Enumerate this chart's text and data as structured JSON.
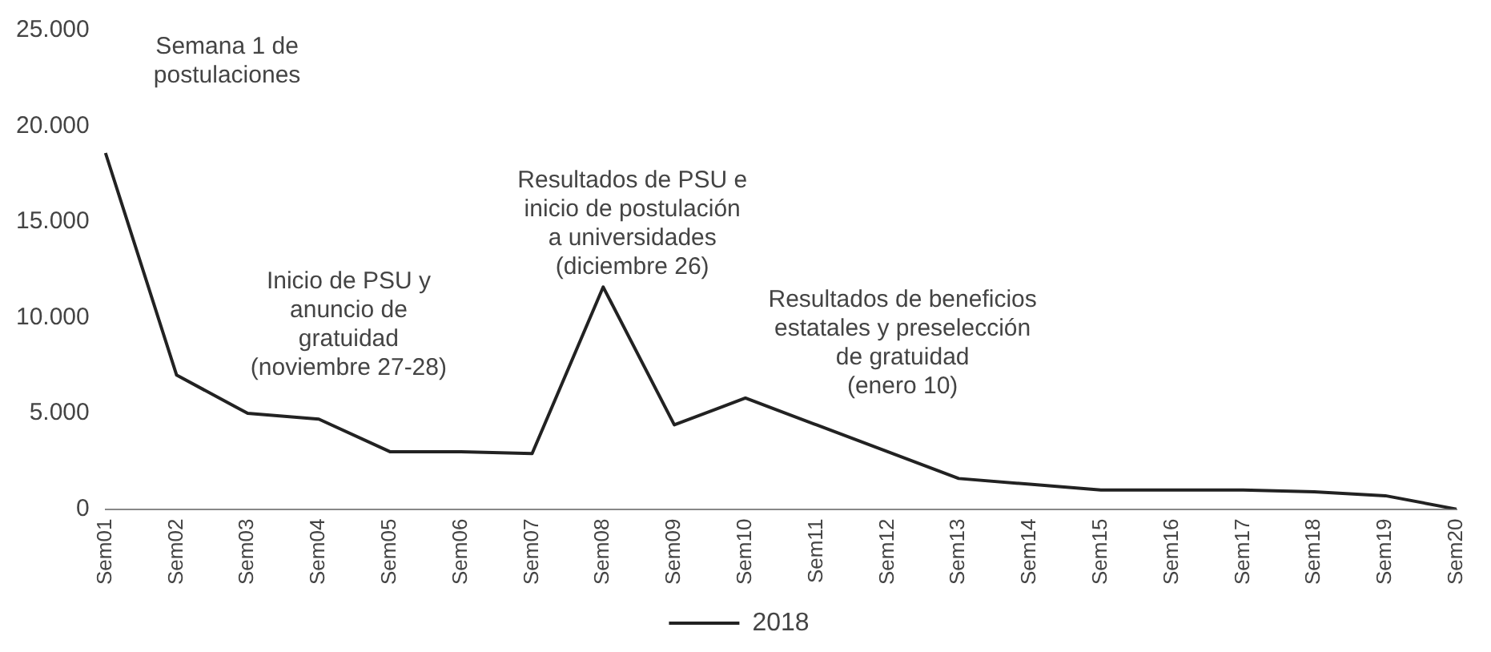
{
  "chart_data": {
    "type": "line",
    "categories": [
      "Sem01",
      "Sem02",
      "Sem03",
      "Sem04",
      "Sem05",
      "Sem06",
      "Sem07",
      "Sem08",
      "Sem09",
      "Sem10",
      "Sem11",
      "Sem12",
      "Sem13",
      "Sem14",
      "Sem15",
      "Sem16",
      "Sem17",
      "Sem18",
      "Sem19",
      "Sem20"
    ],
    "series": [
      {
        "name": "2018",
        "color": "#222222",
        "values": [
          18600,
          7000,
          5000,
          4700,
          3000,
          3000,
          2900,
          11600,
          4400,
          5800,
          4400,
          3000,
          1600,
          1300,
          1000,
          1000,
          1000,
          900,
          700,
          0
        ]
      }
    ],
    "ylim": [
      0,
      25000
    ],
    "yticks": [
      {
        "value": 0,
        "label": "0"
      },
      {
        "value": 5000,
        "label": "5.000"
      },
      {
        "value": 10000,
        "label": "10.000"
      },
      {
        "value": 15000,
        "label": "15.000"
      },
      {
        "value": 20000,
        "label": "20.000"
      },
      {
        "value": 25000,
        "label": "25.000"
      }
    ],
    "grid": false,
    "legend": "bottom",
    "marker": "none",
    "line_style": "solid",
    "annotations": [
      "Semana 1 de\npostulaciones",
      "Inicio de PSU y\nanuncio de\ngratuidad\n(noviembre 27-28)",
      "Resultados de PSU e\ninicio de postulación\na universidades\n(diciembre 26)",
      "Resultados de beneficios\nestatales y preselección\nde gratuidad\n(enero 10)"
    ]
  }
}
